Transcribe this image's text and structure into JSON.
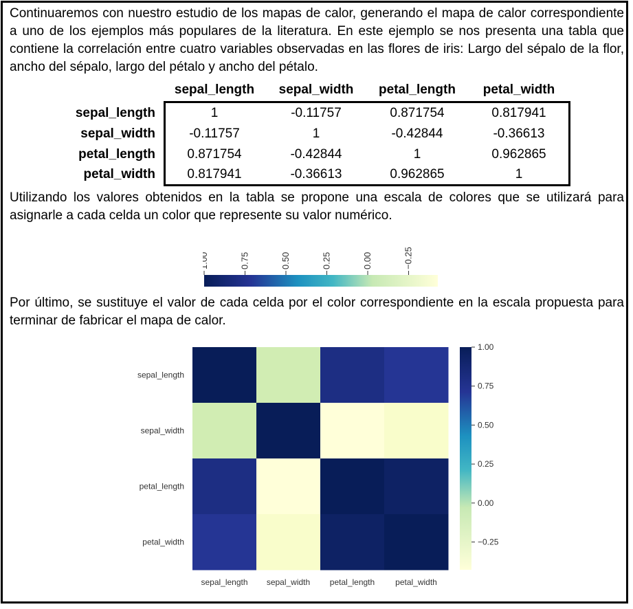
{
  "text": {
    "intro": "Continuaremos con nuestro estudio de los mapas de calor, generando el mapa de calor correspondiente a uno de los ejemplos más populares de la literatura. En este ejemplo se nos presenta una tabla que contiene la correlación entre cuatro variables observadas en las flores de iris: Largo del sépalo de la flor, ancho del sépalo, largo del pétalo y ancho del pétalo.",
    "middle": "Utilizando los valores obtenidos en la tabla se propone una escala de colores que se utilizará para asignarle a cada celda un color que represente su valor numérico.",
    "final": "Por último, se sustituye el valor de cada celda por el color correspondiente en la escala propuesta para terminar de fabricar el mapa de calor."
  },
  "table": {
    "columns": [
      "sepal_length",
      "sepal_width",
      "petal_length",
      "petal_width"
    ],
    "rows": [
      {
        "label": "sepal_length",
        "cells": [
          "1",
          "-0.11757",
          "0.871754",
          "0.817941"
        ]
      },
      {
        "label": "sepal_width",
        "cells": [
          "-0.11757",
          "1",
          "-0.42844",
          "-0.36613"
        ]
      },
      {
        "label": "petal_length",
        "cells": [
          "0.871754",
          "-0.42844",
          "1",
          "0.962865"
        ]
      },
      {
        "label": "petal_width",
        "cells": [
          "0.817941",
          "-0.36613",
          "0.962865",
          "1"
        ]
      }
    ]
  },
  "colors": {
    "dark": "#081d58",
    "blue": "#253494",
    "mid_blue": "#1d91c0",
    "teal": "#41b6c4",
    "green": "#c7e9b4",
    "light": "#ffffd9"
  },
  "chart_data": [
    {
      "type": "colorbar",
      "orientation": "horizontal",
      "ticks": [
        "1.00",
        "0.75",
        "0.50",
        "0.25",
        "0.00",
        "−0.25"
      ],
      "tick_values": [
        1.0,
        0.75,
        0.5,
        0.25,
        0.0,
        -0.25
      ],
      "range": [
        -0.42844,
        1.0
      ],
      "colormap": "YlGnBu"
    },
    {
      "type": "heatmap",
      "x_labels": [
        "sepal_length",
        "sepal_width",
        "petal_length",
        "petal_width"
      ],
      "y_labels": [
        "sepal_length",
        "sepal_width",
        "petal_length",
        "petal_width"
      ],
      "values": [
        [
          1,
          -0.11757,
          0.871754,
          0.817941
        ],
        [
          -0.11757,
          1,
          -0.42844,
          -0.36613
        ],
        [
          0.871754,
          -0.42844,
          1,
          0.962865
        ],
        [
          0.817941,
          -0.36613,
          0.962865,
          1
        ]
      ],
      "vmin": -0.42844,
      "vmax": 1.0,
      "colormap": "YlGnBu",
      "colorbar_ticks": [
        "1.00",
        "0.75",
        "0.50",
        "0.25",
        "0.00",
        "−0.25"
      ],
      "colorbar_tick_values": [
        1.0,
        0.75,
        0.5,
        0.25,
        0.0,
        -0.25
      ],
      "colorbar_placement": "right"
    }
  ]
}
